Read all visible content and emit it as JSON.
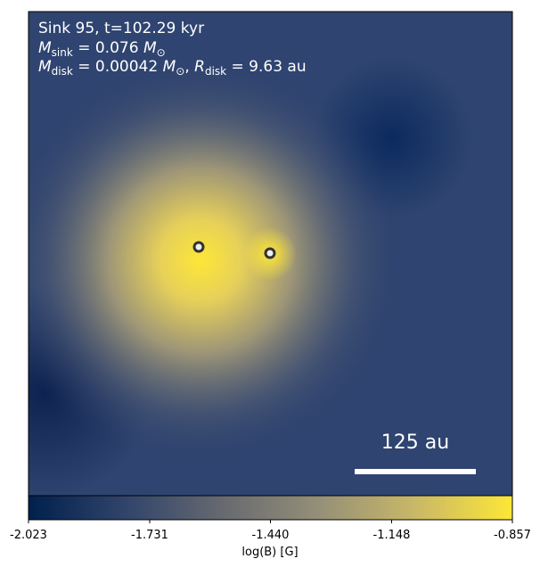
{
  "chart_data": {
    "type": "field-map",
    "annotation": {
      "line1": "Sink 95, t=102.29 kyr",
      "line2": {
        "symbol": "M",
        "subscript": "sink",
        "rest": " = 0.076 ",
        "unit": "M",
        "unit_subscript": "⊙"
      },
      "line3": {
        "symbol": "M",
        "subscript": "disk",
        "rest": " = 0.00042 ",
        "unit": "M",
        "unit_subscript": "⊙",
        "sep": ", ",
        "symbol2": "R",
        "subscript2": "disk",
        "rest2": " = 9.63 au"
      }
    },
    "scale_bar": "125 au",
    "colorbar": {
      "label": "log(B) [G]",
      "clim": [
        -2.023,
        -0.857
      ],
      "ticks": [
        -2.023,
        -1.731,
        {
          "value": -1.44,
          "label": "-1.440"
        },
        -1.148,
        -0.857
      ],
      "colormap": [
        "#00204d",
        "#31446b",
        "#666970",
        "#958f78",
        "#c9b867",
        "#fde737"
      ]
    }
  }
}
